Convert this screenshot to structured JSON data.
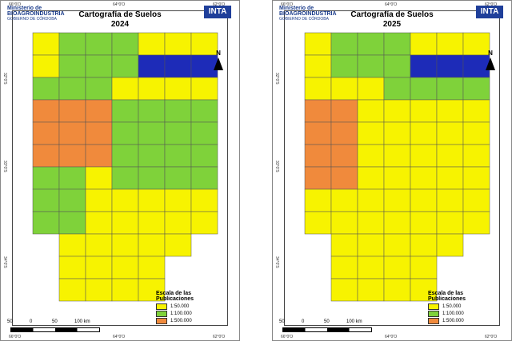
{
  "left": {
    "org_top": "Ministerio de",
    "org_name": "BIOAGROINDUSTRIA",
    "org_sub": "GOBIERNO DE CÓRDOBA",
    "inta": "INTA",
    "title_line1": "Cartografía de Suelos",
    "title_line2": "2024",
    "grat_top_left": "66°0'O",
    "grat_top_mid": "64°0'O",
    "grat_top_right": "62°0'O",
    "grat_left_1": "32°0'S",
    "grat_left_2": "33°0'S",
    "grat_left_3": "34°0'S",
    "grat_bottom_left": "66°0'O",
    "grat_bottom_mid": "64°0'O",
    "grat_bottom_right": "62°0'O",
    "north": "N",
    "scale_labels": [
      "50",
      "0",
      "50",
      "100 km"
    ],
    "legend_title": "Escala de las Publicaciones",
    "legend_items": [
      "1:50.000",
      "1:100.000",
      "1:500.000"
    ]
  },
  "right": {
    "org_top": "Ministerio de",
    "org_name": "BIOAGROINDUSTRIA",
    "org_sub": "GOBIERNO DE CÓRDOBA",
    "inta": "INTA",
    "title_line1": "Cartografía de Suelos",
    "title_line2": "2025",
    "grat_top_left": "66°0'O",
    "grat_top_mid": "64°0'O",
    "grat_top_right": "62°0'O",
    "grat_left_1": "32°0'S",
    "grat_left_2": "33°0'S",
    "grat_left_3": "34°0'S",
    "grat_bottom_left": "66°0'O",
    "grat_bottom_mid": "64°0'O",
    "grat_bottom_right": "62°0'O",
    "north": "N",
    "scale_labels": [
      "50",
      "0",
      "50",
      "100 km"
    ],
    "legend_title": "Escala de las Publicaciones",
    "legend_items": [
      "1:50.000",
      "1:100.000",
      "1:500.000"
    ]
  },
  "colors": {
    "s50000": "#f7f300",
    "s100000": "#7fd23a",
    "s500000": "#f08a3c",
    "blue_region": "#1d2bb8"
  }
}
